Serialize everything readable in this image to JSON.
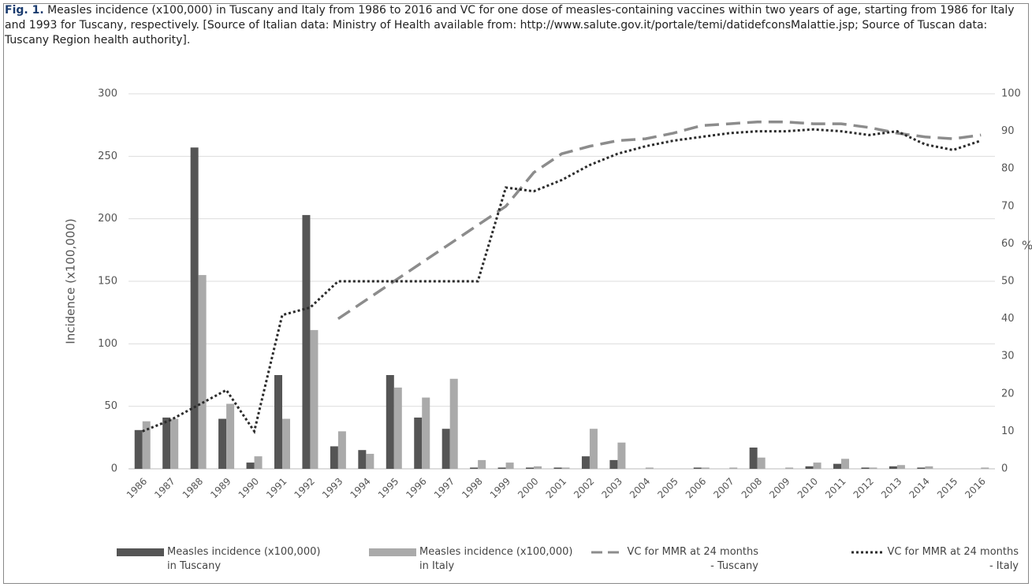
{
  "caption": {
    "label": "Fig. 1.",
    "text": "Measles incidence (x100,000) in Tuscany and Italy from 1986 to 2016 and VC for one dose of measles-containing vaccines within two years of age, starting from 1986 for Italy and 1993 for Tuscany, respectively. [Source of Italian data: Ministry of Health available from: http://www.salute.gov.it/portale/temi/datidefconsMalattie.jsp; Source of Tuscan data: Tuscany Region health authority]."
  },
  "chart_data": {
    "type": "bar_line",
    "ylabel": "Incidence (x100,000)",
    "y2label": "%",
    "categories": [
      "1986",
      "1987",
      "1988",
      "1989",
      "1990",
      "1991",
      "1992",
      "1993",
      "1994",
      "1995",
      "1996",
      "1997",
      "1998",
      "1999",
      "2000",
      "2001",
      "2002",
      "2003",
      "2004",
      "2005",
      "2006",
      "2007",
      "2008",
      "2009",
      "2010",
      "2011",
      "2012",
      "2013",
      "2014",
      "2015",
      "2016"
    ],
    "ylim": [
      0,
      300
    ],
    "yticks": [
      0,
      50,
      100,
      150,
      200,
      250,
      300
    ],
    "y2lim": [
      0,
      100
    ],
    "y2ticks": [
      0,
      10,
      20,
      30,
      40,
      50,
      60,
      70,
      80,
      90,
      100
    ],
    "grid": true,
    "series": [
      {
        "name": "Measles incidence (x100,000) in Tuscany",
        "kind": "bar",
        "color": "#555555",
        "values": [
          31,
          41,
          257,
          40,
          5,
          75,
          203,
          18,
          15,
          75,
          41,
          32,
          1,
          1,
          1,
          1,
          10,
          7,
          0,
          0,
          1,
          0,
          17,
          0,
          2,
          4,
          1,
          2,
          1,
          0,
          0
        ]
      },
      {
        "name": "Measles incidence (x100,000) in Italy",
        "kind": "bar",
        "color": "#aaaaaa",
        "values": [
          38,
          40,
          155,
          52,
          10,
          40,
          111,
          30,
          12,
          65,
          57,
          72,
          7,
          5,
          2,
          1,
          32,
          21,
          1,
          0,
          1,
          1,
          9,
          1,
          5,
          8,
          1,
          3,
          2,
          0,
          1
        ]
      },
      {
        "name": "VC for MMR at 24 months - Tuscany",
        "kind": "line",
        "dash": "dashed",
        "color": "#8c8c8c",
        "axis": "y2",
        "values": [
          null,
          null,
          null,
          null,
          null,
          null,
          null,
          40,
          45,
          50,
          55,
          60,
          65,
          70,
          79,
          84,
          86,
          87.5,
          88,
          89.5,
          91.5,
          92,
          92.5,
          92.5,
          92,
          92,
          91,
          89.5,
          88.5,
          88,
          89
        ]
      },
      {
        "name": "VC for MMR at 24 months - Italy",
        "kind": "line",
        "dash": "dotted",
        "color": "#2b2b2b",
        "axis": "y2",
        "values": [
          10,
          13,
          17,
          21,
          10,
          41,
          43,
          50,
          50,
          50,
          50,
          50,
          50,
          75,
          74,
          77,
          81,
          84,
          86,
          87.5,
          88.5,
          89.5,
          90,
          90,
          90.5,
          90,
          89,
          90,
          86.5,
          85,
          87.5
        ]
      }
    ]
  }
}
